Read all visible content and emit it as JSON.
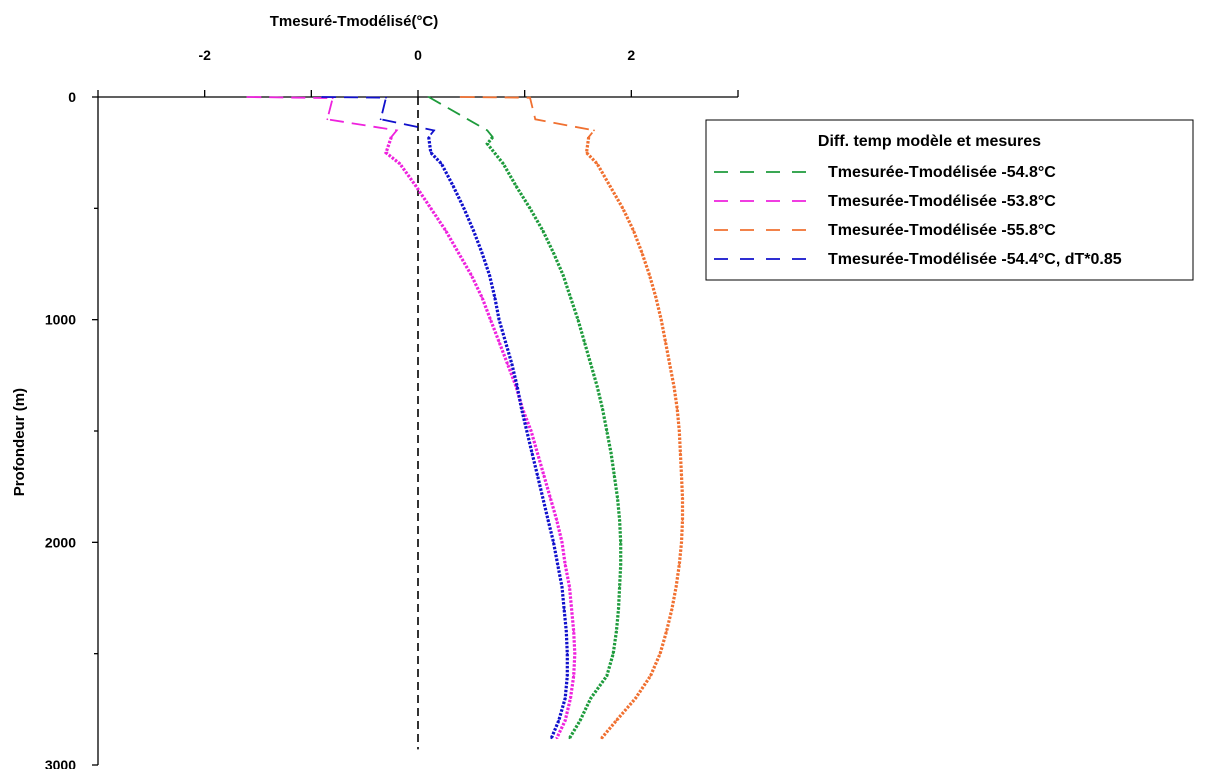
{
  "chart_data": {
    "type": "line",
    "title": "",
    "xlabel": "Tmesuré-Tmodélisé(°C)",
    "ylabel": "Profondeur (m)",
    "xlim": [
      -3,
      3
    ],
    "ylim": [
      0,
      3000
    ],
    "y_inverted": true,
    "x_axis_position": "top",
    "x_ticks": [
      -2,
      0,
      2
    ],
    "y_ticks": [
      0,
      1000,
      2000,
      3000
    ],
    "x_tick_labels": [
      "-2",
      "0",
      "2"
    ],
    "y_tick_labels": [
      "0",
      "1000",
      "2000",
      "3000"
    ],
    "reference_line": {
      "x": 0,
      "style": "dashed",
      "color": "#000000"
    },
    "legend": {
      "title": "Diff. temp modèle et mesures",
      "position": "right"
    },
    "series": [
      {
        "name": "Tmesurée-Tmodélisée -54.8°C",
        "color": "#1e9b3c",
        "points": [
          [
            0.1,
            0
          ],
          [
            0.65,
            150
          ],
          [
            0.7,
            180
          ],
          [
            0.65,
            210
          ],
          [
            0.8,
            300
          ],
          [
            0.92,
            400
          ],
          [
            1.05,
            500
          ],
          [
            1.17,
            600
          ],
          [
            1.27,
            700
          ],
          [
            1.36,
            800
          ],
          [
            1.43,
            900
          ],
          [
            1.5,
            1000
          ],
          [
            1.56,
            1100
          ],
          [
            1.62,
            1200
          ],
          [
            1.68,
            1300
          ],
          [
            1.73,
            1400
          ],
          [
            1.77,
            1500
          ],
          [
            1.81,
            1600
          ],
          [
            1.84,
            1700
          ],
          [
            1.87,
            1800
          ],
          [
            1.89,
            1900
          ],
          [
            1.9,
            2000
          ],
          [
            1.9,
            2100
          ],
          [
            1.89,
            2200
          ],
          [
            1.88,
            2300
          ],
          [
            1.86,
            2400
          ],
          [
            1.83,
            2500
          ],
          [
            1.77,
            2600
          ],
          [
            1.62,
            2700
          ],
          [
            1.52,
            2800
          ],
          [
            1.42,
            2880
          ]
        ]
      },
      {
        "name": "Tmesurée-Tmodélisée -53.8°C",
        "color": "#ee22dd",
        "points": [
          [
            -1.6,
            0
          ],
          [
            -0.8,
            5
          ],
          [
            -0.85,
            100
          ],
          [
            -0.2,
            150
          ],
          [
            -0.25,
            180
          ],
          [
            -0.3,
            250
          ],
          [
            -0.17,
            300
          ],
          [
            -0.02,
            400
          ],
          [
            0.12,
            500
          ],
          [
            0.26,
            600
          ],
          [
            0.38,
            700
          ],
          [
            0.5,
            800
          ],
          [
            0.6,
            900
          ],
          [
            0.68,
            1000
          ],
          [
            0.76,
            1100
          ],
          [
            0.84,
            1200
          ],
          [
            0.92,
            1300
          ],
          [
            0.98,
            1400
          ],
          [
            1.06,
            1500
          ],
          [
            1.12,
            1600
          ],
          [
            1.18,
            1700
          ],
          [
            1.24,
            1800
          ],
          [
            1.3,
            1900
          ],
          [
            1.35,
            2000
          ],
          [
            1.38,
            2100
          ],
          [
            1.42,
            2200
          ],
          [
            1.44,
            2300
          ],
          [
            1.46,
            2400
          ],
          [
            1.47,
            2500
          ],
          [
            1.46,
            2600
          ],
          [
            1.43,
            2700
          ],
          [
            1.38,
            2800
          ],
          [
            1.3,
            2880
          ]
        ]
      },
      {
        "name": "Tmesurée-Tmodélisée -55.8°C",
        "color": "#f07030",
        "points": [
          [
            0.4,
            0
          ],
          [
            1.05,
            3
          ],
          [
            1.1,
            100
          ],
          [
            1.65,
            150
          ],
          [
            1.6,
            180
          ],
          [
            1.58,
            250
          ],
          [
            1.68,
            300
          ],
          [
            1.8,
            400
          ],
          [
            1.92,
            500
          ],
          [
            2.02,
            600
          ],
          [
            2.1,
            700
          ],
          [
            2.17,
            800
          ],
          [
            2.23,
            900
          ],
          [
            2.28,
            1000
          ],
          [
            2.32,
            1100
          ],
          [
            2.36,
            1200
          ],
          [
            2.4,
            1300
          ],
          [
            2.43,
            1400
          ],
          [
            2.45,
            1500
          ],
          [
            2.46,
            1600
          ],
          [
            2.47,
            1700
          ],
          [
            2.48,
            1800
          ],
          [
            2.48,
            1900
          ],
          [
            2.47,
            2000
          ],
          [
            2.45,
            2100
          ],
          [
            2.42,
            2200
          ],
          [
            2.38,
            2300
          ],
          [
            2.33,
            2400
          ],
          [
            2.27,
            2500
          ],
          [
            2.18,
            2600
          ],
          [
            2.04,
            2700
          ],
          [
            1.86,
            2800
          ],
          [
            1.72,
            2880
          ]
        ]
      },
      {
        "name": "Tmesurée-Tmodélisée -54.4°C, dT*0.85",
        "color": "#1010cc",
        "points": [
          [
            -0.9,
            0
          ],
          [
            -0.3,
            3
          ],
          [
            -0.35,
            100
          ],
          [
            0.15,
            150
          ],
          [
            0.1,
            180
          ],
          [
            0.12,
            250
          ],
          [
            0.22,
            300
          ],
          [
            0.33,
            400
          ],
          [
            0.43,
            500
          ],
          [
            0.52,
            600
          ],
          [
            0.6,
            700
          ],
          [
            0.67,
            800
          ],
          [
            0.72,
            900
          ],
          [
            0.76,
            1000
          ],
          [
            0.82,
            1100
          ],
          [
            0.88,
            1200
          ],
          [
            0.93,
            1300
          ],
          [
            0.97,
            1400
          ],
          [
            1.02,
            1500
          ],
          [
            1.07,
            1600
          ],
          [
            1.12,
            1700
          ],
          [
            1.17,
            1800
          ],
          [
            1.22,
            1900
          ],
          [
            1.27,
            2000
          ],
          [
            1.31,
            2100
          ],
          [
            1.35,
            2200
          ],
          [
            1.37,
            2300
          ],
          [
            1.39,
            2400
          ],
          [
            1.4,
            2500
          ],
          [
            1.4,
            2600
          ],
          [
            1.38,
            2700
          ],
          [
            1.32,
            2800
          ],
          [
            1.25,
            2880
          ]
        ]
      }
    ]
  }
}
